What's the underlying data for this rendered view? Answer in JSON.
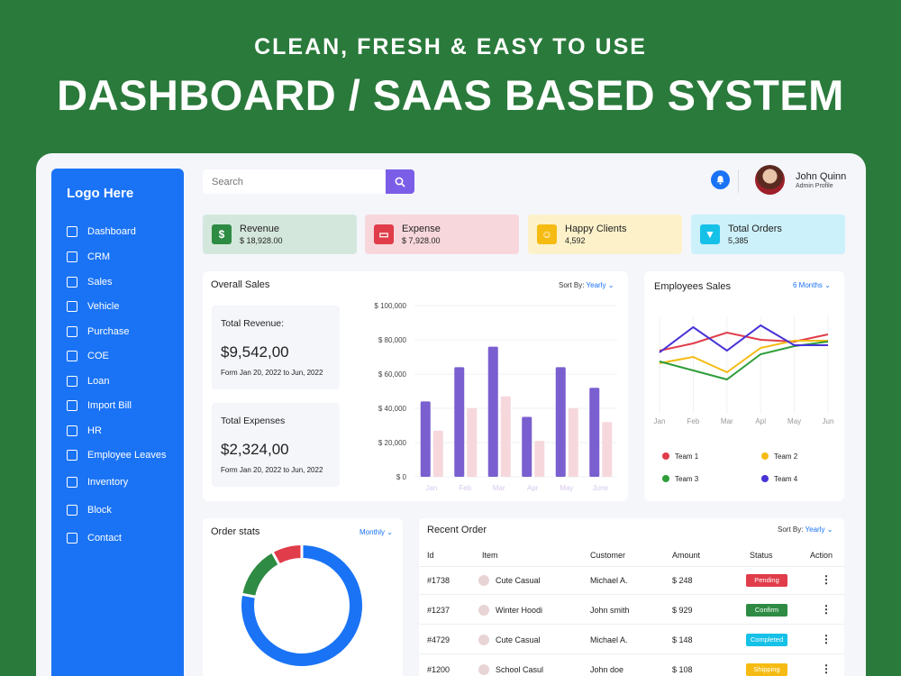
{
  "hero": {
    "subtitle": "CLEAN, FRESH & EASY TO USE",
    "title": "DASHBOARD / SAAS BASED SYSTEM"
  },
  "sidebar": {
    "logo": "Logo Here",
    "items": [
      {
        "label": "Dashboard",
        "icon": "dashboard-icon"
      },
      {
        "label": "CRM",
        "icon": "crm-icon"
      },
      {
        "label": "Sales",
        "icon": "sales-icon"
      },
      {
        "label": "Vehicle",
        "icon": "vehicle-icon"
      },
      {
        "label": "Purchase",
        "icon": "purchase-icon"
      },
      {
        "label": "COE",
        "icon": "coe-icon"
      },
      {
        "label": "Loan",
        "icon": "loan-icon"
      },
      {
        "label": "Import Bill",
        "icon": "import-bill-icon"
      },
      {
        "label": "HR",
        "icon": "hr-icon"
      },
      {
        "label": "Employee Leaves",
        "icon": "employee-leaves-icon"
      },
      {
        "label": "Inventory",
        "icon": "inventory-icon"
      },
      {
        "label": "Block",
        "icon": "block-icon"
      },
      {
        "label": "Contact",
        "icon": "contact-icon"
      }
    ]
  },
  "header": {
    "search_placeholder": "Search",
    "user_name": "John Quinn",
    "user_role": "Admin Profile"
  },
  "stats": [
    {
      "label": "Revenue",
      "value": "$ 18,928.00",
      "icon": "dollar-icon",
      "color": "#2e8b43",
      "bg": "#d4e7dd"
    },
    {
      "label": "Expense",
      "value": "$ 7,928.00",
      "icon": "card-icon",
      "color": "#e03c4a",
      "bg": "#f8d7dc"
    },
    {
      "label": "Happy Clients",
      "value": "4,592",
      "icon": "smile-icon",
      "color": "#f5bb12",
      "bg": "#fdf1c9"
    },
    {
      "label": "Total Orders",
      "value": "5,385",
      "icon": "basket-icon",
      "color": "#16c1e8",
      "bg": "#ccf1fa"
    }
  ],
  "overall_sales": {
    "title": "Overall Sales",
    "sort_label": "Sort By:",
    "sort_value": "Yearly",
    "revenue_label": "Total Revenue:",
    "revenue_value": "$9,542,00",
    "revenue_range": "Form Jan 20, 2022 to Jun, 2022",
    "expenses_label": "Total Expenses",
    "expenses_value": "$2,324,00",
    "expenses_range": "Form Jan 20, 2022 to Jun, 2022"
  },
  "employees_sales": {
    "title": "Employees Sales",
    "period": "6 Months"
  },
  "order_stats": {
    "title": "Order stats",
    "period": "Monthly"
  },
  "recent_order": {
    "title": "Recent Order",
    "sort_label": "Sort By:",
    "sort_value": "Yearly",
    "headers": [
      "Id",
      "Item",
      "Customer",
      "Amount",
      "Status",
      "Action"
    ],
    "rows": [
      {
        "id": "#1738",
        "item": "Cute Casual",
        "customer": "Michael A.",
        "amount": "$ 248",
        "status": "Pending",
        "color": "#e03c4a"
      },
      {
        "id": "#1237",
        "item": "Winter Hoodi",
        "customer": "John smith",
        "amount": "$ 929",
        "status": "Confirm",
        "color": "#2e8b43"
      },
      {
        "id": "#4729",
        "item": "Cute Casual",
        "customer": "Michael A.",
        "amount": "$ 148",
        "status": "Completed",
        "color": "#16c1e8"
      },
      {
        "id": "#1200",
        "item": "School Casul",
        "customer": "John doe",
        "amount": "$ 108",
        "status": "Shipping",
        "color": "#f5bb12"
      }
    ]
  },
  "chart_data": [
    {
      "type": "bar",
      "categories": [
        "Jan",
        "Feb",
        "Mar",
        "Apr",
        "May",
        "June"
      ],
      "yticks": [
        "$ 0",
        "$ 20,000",
        "$ 40,000",
        "$ 60,000",
        "$ 80,000",
        "$ 100,000"
      ],
      "ylim": [
        0,
        100000
      ],
      "series": [
        {
          "values": [
            44000,
            64000,
            76000,
            35000,
            64000,
            52000
          ],
          "color": "#7a5fd0"
        },
        {
          "values": [
            27000,
            40000,
            47000,
            21000,
            40000,
            32000
          ],
          "color": "#f6d8dc"
        }
      ]
    },
    {
      "type": "line",
      "categories": [
        "Jan",
        "Feb",
        "Mar",
        "Apl",
        "May",
        "Jun"
      ],
      "ylim": [
        0,
        100
      ],
      "legend_position": "bottom",
      "series": [
        {
          "name": "Team 1",
          "color": "#e03c4a",
          "values": [
            62,
            70,
            82,
            74,
            72,
            80
          ]
        },
        {
          "name": "Team 2",
          "color": "#f5bb12",
          "values": [
            48,
            55,
            38,
            65,
            73,
            73
          ]
        },
        {
          "name": "Team 3",
          "color": "#2e9d3a",
          "values": [
            50,
            40,
            30,
            58,
            67,
            72
          ]
        },
        {
          "name": "Team 4",
          "color": "#4733d6",
          "values": [
            60,
            88,
            62,
            90,
            68,
            68
          ]
        }
      ]
    },
    {
      "type": "pie",
      "slices": [
        {
          "value": 78,
          "color": "#1a73f5"
        },
        {
          "value": 14,
          "color": "#2e8b43"
        },
        {
          "value": 8,
          "color": "#e03c4a"
        }
      ]
    }
  ]
}
